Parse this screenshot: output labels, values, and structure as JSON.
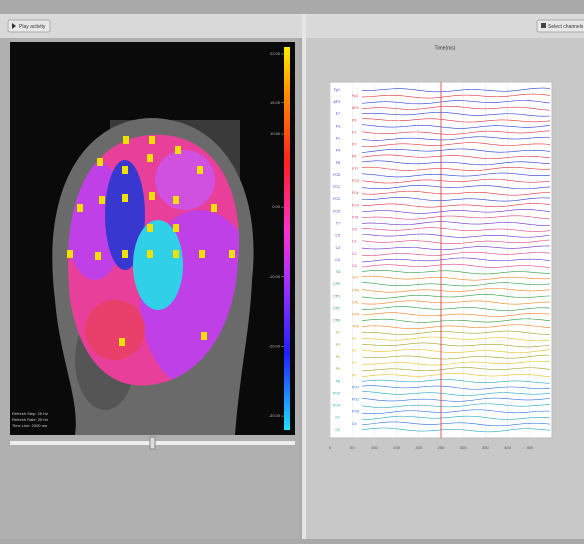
{
  "toolbar": {
    "play_button": "Play activity",
    "select_button": "Select channels"
  },
  "topomap": {
    "colorbar_ticks": [
      {
        "value": 22,
        "label": "22.00"
      },
      {
        "value": 15,
        "label": "15.00"
      },
      {
        "value": 10.5,
        "label": "10.50"
      },
      {
        "value": 0,
        "label": "0.00"
      },
      {
        "value": -10,
        "label": "-10.00"
      },
      {
        "value": -20,
        "label": "-20.00"
      },
      {
        "value": -30,
        "label": "-30.00"
      }
    ],
    "colorbar_lim": [
      -32,
      23
    ],
    "status": [
      "Refresh Step: 25 Hz",
      "Refresh Rate: 25 Hz",
      "Time Line: 2000 ms"
    ]
  },
  "eeg_panel": {
    "title": "Time(ms)",
    "xlim": [
      0,
      500
    ],
    "xticks": [
      0,
      50,
      100,
      150,
      200,
      250,
      300,
      350,
      400,
      450
    ],
    "cursor": 250,
    "channels": [
      {
        "name": "Fp1",
        "color": "#2a3ad0"
      },
      {
        "name": "Fp2",
        "color": "#e0303c"
      },
      {
        "name": "AF3",
        "color": "#2a3ad0"
      },
      {
        "name": "AF4",
        "color": "#e0303c"
      },
      {
        "name": "F7",
        "color": "#2a3ad0"
      },
      {
        "name": "F5",
        "color": "#e0303c"
      },
      {
        "name": "F3",
        "color": "#2a3ad0"
      },
      {
        "name": "F1",
        "color": "#e0303c"
      },
      {
        "name": "Fz",
        "color": "#2a3ad0"
      },
      {
        "name": "F2",
        "color": "#e0303c"
      },
      {
        "name": "F4",
        "color": "#2a3ad0"
      },
      {
        "name": "F6",
        "color": "#e0303c"
      },
      {
        "name": "F8",
        "color": "#2a3ad0"
      },
      {
        "name": "FT7",
        "color": "#e0303c"
      },
      {
        "name": "FC5",
        "color": "#2a3ad0"
      },
      {
        "name": "FC3",
        "color": "#e0303c"
      },
      {
        "name": "FC1",
        "color": "#2a3ad0"
      },
      {
        "name": "FCz",
        "color": "#e0303c"
      },
      {
        "name": "FC2",
        "color": "#2a3ad0"
      },
      {
        "name": "FC4",
        "color": "#e0303c"
      },
      {
        "name": "FC6",
        "color": "#6a2ad0"
      },
      {
        "name": "FT8",
        "color": "#e0407c"
      },
      {
        "name": "T7",
        "color": "#6a2ad0"
      },
      {
        "name": "C5",
        "color": "#e0407c"
      },
      {
        "name": "C3",
        "color": "#6a2ad0"
      },
      {
        "name": "C1",
        "color": "#e0407c"
      },
      {
        "name": "Cz",
        "color": "#6a2ad0"
      },
      {
        "name": "C2",
        "color": "#e0407c"
      },
      {
        "name": "C4",
        "color": "#6a2ad0"
      },
      {
        "name": "C6",
        "color": "#e0407c"
      },
      {
        "name": "T8",
        "color": "#2a9a40"
      },
      {
        "name": "TP7",
        "color": "#f08020"
      },
      {
        "name": "CP5",
        "color": "#2a9a40"
      },
      {
        "name": "CP3",
        "color": "#f08020"
      },
      {
        "name": "CP1",
        "color": "#2a9a40"
      },
      {
        "name": "CPz",
        "color": "#f08020"
      },
      {
        "name": "CP2",
        "color": "#2a9a40"
      },
      {
        "name": "CP4",
        "color": "#f08020"
      },
      {
        "name": "CP6",
        "color": "#2a9a40"
      },
      {
        "name": "TP8",
        "color": "#f08020"
      },
      {
        "name": "P7",
        "color": "#a0a020"
      },
      {
        "name": "P5",
        "color": "#e8c020"
      },
      {
        "name": "P3",
        "color": "#a0a020"
      },
      {
        "name": "P1",
        "color": "#e8c020"
      },
      {
        "name": "Pz",
        "color": "#a0a020"
      },
      {
        "name": "P2",
        "color": "#e8c020"
      },
      {
        "name": "P4",
        "color": "#a0a020"
      },
      {
        "name": "P6",
        "color": "#e8c020"
      },
      {
        "name": "P8",
        "color": "#20a8c0"
      },
      {
        "name": "PO7",
        "color": "#3070e0"
      },
      {
        "name": "PO3",
        "color": "#20a8c0"
      },
      {
        "name": "POz",
        "color": "#3070e0"
      },
      {
        "name": "PO4",
        "color": "#20a8c0"
      },
      {
        "name": "PO8",
        "color": "#3070e0"
      },
      {
        "name": "O1",
        "color": "#20a8c0"
      },
      {
        "name": "Oz",
        "color": "#3070e0"
      },
      {
        "name": "O2",
        "color": "#20a8c0"
      }
    ]
  }
}
